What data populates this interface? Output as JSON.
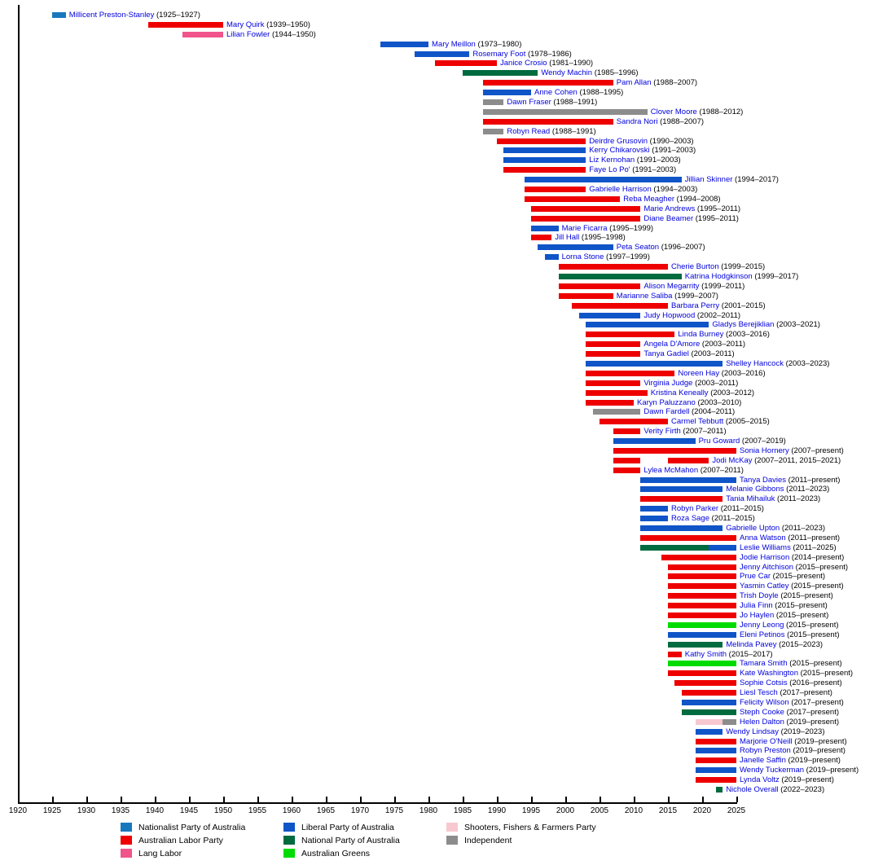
{
  "chart_data": {
    "type": "bar",
    "variant": "gantt-timeline",
    "title": "",
    "xlabel": "",
    "x_axis": {
      "min": 1920,
      "max": 2025,
      "tick_interval": 5
    },
    "present_end_year": 2025,
    "grid": false,
    "legend_position": "bottom",
    "colors": {
      "member_link": "#0202DD",
      "years_text": "#000000",
      "axis": "#000000",
      "background": "#ffffff"
    },
    "parties": {
      "nationalist": {
        "label": "Nationalist Party of Australia",
        "color": "#1878BE"
      },
      "labor": {
        "label": "Australian Labor Party",
        "color": "#EE0000"
      },
      "lang_labor": {
        "label": "Lang Labor",
        "color": "#F0548A"
      },
      "liberal": {
        "label": "Liberal Party of Australia",
        "color": "#1055C8"
      },
      "national": {
        "label": "National Party of Australia",
        "color": "#006B3F"
      },
      "greens": {
        "label": "Australian Greens",
        "color": "#00DC00"
      },
      "sff": {
        "label": "Shooters, Fishers & Farmers Party",
        "color": "#F7C8D0"
      },
      "independent": {
        "label": "Independent",
        "color": "#8C8C8C"
      }
    },
    "legend_order": [
      "nationalist",
      "labor",
      "lang_labor",
      "liberal",
      "national",
      "greens",
      "sff",
      "independent"
    ],
    "members": [
      {
        "name": "Millicent Preston-Stanley",
        "years": "(1925–1927)",
        "segments": [
          {
            "party": "nationalist",
            "start": 1925,
            "end": 1927
          }
        ]
      },
      {
        "name": "Mary Quirk",
        "years": "(1939–1950)",
        "segments": [
          {
            "party": "labor",
            "start": 1939,
            "end": 1950
          }
        ]
      },
      {
        "name": "Lilian Fowler",
        "years": "(1944–1950)",
        "segments": [
          {
            "party": "lang_labor",
            "start": 1944,
            "end": 1950
          }
        ]
      },
      {
        "name": "Mary Meillon",
        "years": "(1973–1980)",
        "segments": [
          {
            "party": "liberal",
            "start": 1973,
            "end": 1980
          }
        ]
      },
      {
        "name": "Rosemary Foot",
        "years": "(1978–1986)",
        "segments": [
          {
            "party": "liberal",
            "start": 1978,
            "end": 1986
          }
        ]
      },
      {
        "name": "Janice Crosio",
        "years": "(1981–1990)",
        "segments": [
          {
            "party": "labor",
            "start": 1981,
            "end": 1990
          }
        ]
      },
      {
        "name": "Wendy Machin",
        "years": "(1985–1996)",
        "segments": [
          {
            "party": "national",
            "start": 1985,
            "end": 1996
          }
        ]
      },
      {
        "name": "Pam Allan",
        "years": "(1988–2007)",
        "segments": [
          {
            "party": "labor",
            "start": 1988,
            "end": 2007
          }
        ]
      },
      {
        "name": "Anne Cohen",
        "years": "(1988–1995)",
        "segments": [
          {
            "party": "liberal",
            "start": 1988,
            "end": 1995
          }
        ]
      },
      {
        "name": "Dawn Fraser",
        "years": "(1988–1991)",
        "segments": [
          {
            "party": "independent",
            "start": 1988,
            "end": 1991
          }
        ]
      },
      {
        "name": "Clover Moore",
        "years": "(1988–2012)",
        "segments": [
          {
            "party": "independent",
            "start": 1988,
            "end": 2012
          }
        ]
      },
      {
        "name": "Sandra Nori",
        "years": "(1988–2007)",
        "segments": [
          {
            "party": "labor",
            "start": 1988,
            "end": 2007
          }
        ]
      },
      {
        "name": "Robyn Read",
        "years": "(1988–1991)",
        "segments": [
          {
            "party": "independent",
            "start": 1988,
            "end": 1991
          }
        ]
      },
      {
        "name": "Deirdre Grusovin",
        "years": "(1990–2003)",
        "segments": [
          {
            "party": "labor",
            "start": 1990,
            "end": 2003
          }
        ]
      },
      {
        "name": "Kerry Chikarovski",
        "years": "(1991–2003)",
        "segments": [
          {
            "party": "liberal",
            "start": 1991,
            "end": 2003
          }
        ]
      },
      {
        "name": "Liz Kernohan",
        "years": "(1991–2003)",
        "segments": [
          {
            "party": "liberal",
            "start": 1991,
            "end": 2003
          }
        ]
      },
      {
        "name": "Faye Lo Po'",
        "years": "(1991–2003)",
        "segments": [
          {
            "party": "labor",
            "start": 1991,
            "end": 2003
          }
        ]
      },
      {
        "name": "Jillian Skinner",
        "years": "(1994–2017)",
        "segments": [
          {
            "party": "liberal",
            "start": 1994,
            "end": 2017
          }
        ]
      },
      {
        "name": "Gabrielle Harrison",
        "years": "(1994–2003)",
        "segments": [
          {
            "party": "labor",
            "start": 1994,
            "end": 2003
          }
        ]
      },
      {
        "name": "Reba Meagher",
        "years": "(1994–2008)",
        "segments": [
          {
            "party": "labor",
            "start": 1994,
            "end": 2008
          }
        ]
      },
      {
        "name": "Marie Andrews",
        "years": "(1995–2011)",
        "segments": [
          {
            "party": "labor",
            "start": 1995,
            "end": 2011
          }
        ]
      },
      {
        "name": "Diane Beamer",
        "years": "(1995–2011)",
        "segments": [
          {
            "party": "labor",
            "start": 1995,
            "end": 2011
          }
        ]
      },
      {
        "name": "Marie Ficarra",
        "years": "(1995–1999)",
        "segments": [
          {
            "party": "liberal",
            "start": 1995,
            "end": 1999
          }
        ]
      },
      {
        "name": "Jill Hall",
        "years": "(1995–1998)",
        "segments": [
          {
            "party": "labor",
            "start": 1995,
            "end": 1998
          }
        ]
      },
      {
        "name": "Peta Seaton",
        "years": "(1996–2007)",
        "segments": [
          {
            "party": "liberal",
            "start": 1996,
            "end": 2007
          }
        ]
      },
      {
        "name": "Lorna Stone",
        "years": "(1997–1999)",
        "segments": [
          {
            "party": "liberal",
            "start": 1997,
            "end": 1999
          }
        ]
      },
      {
        "name": "Cherie Burton",
        "years": "(1999–2015)",
        "segments": [
          {
            "party": "labor",
            "start": 1999,
            "end": 2015
          }
        ]
      },
      {
        "name": "Katrina Hodgkinson",
        "years": "(1999–2017)",
        "segments": [
          {
            "party": "national",
            "start": 1999,
            "end": 2017
          }
        ]
      },
      {
        "name": "Alison Megarrity",
        "years": "(1999–2011)",
        "segments": [
          {
            "party": "labor",
            "start": 1999,
            "end": 2011
          }
        ]
      },
      {
        "name": "Marianne Saliba",
        "years": "(1999–2007)",
        "segments": [
          {
            "party": "labor",
            "start": 1999,
            "end": 2007
          }
        ]
      },
      {
        "name": "Barbara Perry",
        "years": "(2001–2015)",
        "segments": [
          {
            "party": "labor",
            "start": 2001,
            "end": 2015
          }
        ]
      },
      {
        "name": "Judy Hopwood",
        "years": "(2002–2011)",
        "segments": [
          {
            "party": "liberal",
            "start": 2002,
            "end": 2011
          }
        ]
      },
      {
        "name": "Gladys Berejiklian",
        "years": "(2003–2021)",
        "segments": [
          {
            "party": "liberal",
            "start": 2003,
            "end": 2021
          }
        ]
      },
      {
        "name": "Linda Burney",
        "years": "(2003–2016)",
        "segments": [
          {
            "party": "labor",
            "start": 2003,
            "end": 2016
          }
        ]
      },
      {
        "name": "Angela D'Amore",
        "years": "(2003–2011)",
        "segments": [
          {
            "party": "labor",
            "start": 2003,
            "end": 2011
          }
        ]
      },
      {
        "name": "Tanya Gadiel",
        "years": "(2003–2011)",
        "segments": [
          {
            "party": "labor",
            "start": 2003,
            "end": 2011
          }
        ]
      },
      {
        "name": "Shelley Hancock",
        "years": "(2003–2023)",
        "segments": [
          {
            "party": "liberal",
            "start": 2003,
            "end": 2023
          }
        ]
      },
      {
        "name": "Noreen Hay",
        "years": "(2003–2016)",
        "segments": [
          {
            "party": "labor",
            "start": 2003,
            "end": 2016
          }
        ]
      },
      {
        "name": "Virginia Judge",
        "years": "(2003–2011)",
        "segments": [
          {
            "party": "labor",
            "start": 2003,
            "end": 2011
          }
        ]
      },
      {
        "name": "Kristina Keneally",
        "years": "(2003–2012)",
        "segments": [
          {
            "party": "labor",
            "start": 2003,
            "end": 2012
          }
        ]
      },
      {
        "name": "Karyn Paluzzano",
        "years": "(2003–2010)",
        "segments": [
          {
            "party": "labor",
            "start": 2003,
            "end": 2010
          }
        ]
      },
      {
        "name": "Dawn Fardell",
        "years": "(2004–2011)",
        "segments": [
          {
            "party": "independent",
            "start": 2004,
            "end": 2011
          }
        ]
      },
      {
        "name": "Carmel Tebbutt",
        "years": "(2005–2015)",
        "segments": [
          {
            "party": "labor",
            "start": 2005,
            "end": 2015
          }
        ]
      },
      {
        "name": "Verity Firth",
        "years": "(2007–2011)",
        "segments": [
          {
            "party": "labor",
            "start": 2007,
            "end": 2011
          }
        ]
      },
      {
        "name": "Pru Goward",
        "years": "(2007–2019)",
        "segments": [
          {
            "party": "liberal",
            "start": 2007,
            "end": 2019
          }
        ]
      },
      {
        "name": "Sonia Hornery",
        "years": "(2007–present)",
        "segments": [
          {
            "party": "labor",
            "start": 2007,
            "end": 2025
          }
        ]
      },
      {
        "name": "Jodi McKay",
        "years": "(2007–2011, 2015–2021)",
        "segments": [
          {
            "party": "labor",
            "start": 2007,
            "end": 2011
          },
          {
            "party": "labor",
            "start": 2015,
            "end": 2021
          }
        ]
      },
      {
        "name": "Lylea McMahon",
        "years": "(2007–2011)",
        "segments": [
          {
            "party": "labor",
            "start": 2007,
            "end": 2011
          }
        ]
      },
      {
        "name": "Tanya Davies",
        "years": "(2011–present)",
        "segments": [
          {
            "party": "liberal",
            "start": 2011,
            "end": 2025
          }
        ]
      },
      {
        "name": "Melanie Gibbons",
        "years": "(2011–2023)",
        "segments": [
          {
            "party": "liberal",
            "start": 2011,
            "end": 2023
          }
        ]
      },
      {
        "name": "Tania Mihailuk",
        "years": "(2011–2023)",
        "segments": [
          {
            "party": "labor",
            "start": 2011,
            "end": 2023
          }
        ]
      },
      {
        "name": "Robyn Parker",
        "years": "(2011–2015)",
        "segments": [
          {
            "party": "liberal",
            "start": 2011,
            "end": 2015
          }
        ]
      },
      {
        "name": "Roza Sage",
        "years": "(2011–2015)",
        "segments": [
          {
            "party": "liberal",
            "start": 2011,
            "end": 2015
          }
        ]
      },
      {
        "name": "Gabrielle Upton",
        "years": "(2011–2023)",
        "segments": [
          {
            "party": "liberal",
            "start": 2011,
            "end": 2023
          }
        ]
      },
      {
        "name": "Anna Watson",
        "years": "(2011–present)",
        "segments": [
          {
            "party": "labor",
            "start": 2011,
            "end": 2025
          }
        ]
      },
      {
        "name": "Leslie Williams",
        "years": "(2011–2025)",
        "segments": [
          {
            "party": "national",
            "start": 2011,
            "end": 2021
          },
          {
            "party": "liberal",
            "start": 2021,
            "end": 2025
          }
        ]
      },
      {
        "name": "Jodie Harrison",
        "years": "(2014–present)",
        "segments": [
          {
            "party": "labor",
            "start": 2014,
            "end": 2025
          }
        ]
      },
      {
        "name": "Jenny Aitchison",
        "years": "(2015–present)",
        "segments": [
          {
            "party": "labor",
            "start": 2015,
            "end": 2025
          }
        ]
      },
      {
        "name": "Prue Car",
        "years": "(2015–present)",
        "segments": [
          {
            "party": "labor",
            "start": 2015,
            "end": 2025
          }
        ]
      },
      {
        "name": "Yasmin Catley",
        "years": "(2015–present)",
        "segments": [
          {
            "party": "labor",
            "start": 2015,
            "end": 2025
          }
        ]
      },
      {
        "name": "Trish Doyle",
        "years": "(2015–present)",
        "segments": [
          {
            "party": "labor",
            "start": 2015,
            "end": 2025
          }
        ]
      },
      {
        "name": "Julia Finn",
        "years": "(2015–present)",
        "segments": [
          {
            "party": "labor",
            "start": 2015,
            "end": 2025
          }
        ]
      },
      {
        "name": "Jo Haylen",
        "years": "(2015–present)",
        "segments": [
          {
            "party": "labor",
            "start": 2015,
            "end": 2025
          }
        ]
      },
      {
        "name": "Jenny Leong",
        "years": "(2015–present)",
        "segments": [
          {
            "party": "greens",
            "start": 2015,
            "end": 2025
          }
        ]
      },
      {
        "name": "Eleni Petinos",
        "years": "(2015–present)",
        "segments": [
          {
            "party": "liberal",
            "start": 2015,
            "end": 2025
          }
        ]
      },
      {
        "name": "Melinda Pavey",
        "years": "(2015–2023)",
        "segments": [
          {
            "party": "national",
            "start": 2015,
            "end": 2023
          }
        ]
      },
      {
        "name": "Kathy Smith",
        "years": "(2015–2017)",
        "segments": [
          {
            "party": "labor",
            "start": 2015,
            "end": 2017
          }
        ]
      },
      {
        "name": "Tamara Smith",
        "years": "(2015–present)",
        "segments": [
          {
            "party": "greens",
            "start": 2015,
            "end": 2025
          }
        ]
      },
      {
        "name": "Kate Washington",
        "years": "(2015–present)",
        "segments": [
          {
            "party": "labor",
            "start": 2015,
            "end": 2025
          }
        ]
      },
      {
        "name": "Sophie Cotsis",
        "years": "(2016–present)",
        "segments": [
          {
            "party": "labor",
            "start": 2016,
            "end": 2025
          }
        ]
      },
      {
        "name": "Liesl Tesch",
        "years": "(2017–present)",
        "segments": [
          {
            "party": "labor",
            "start": 2017,
            "end": 2025
          }
        ]
      },
      {
        "name": "Felicity Wilson",
        "years": "(2017–present)",
        "segments": [
          {
            "party": "liberal",
            "start": 2017,
            "end": 2025
          }
        ]
      },
      {
        "name": "Steph Cooke",
        "years": "(2017–present)",
        "segments": [
          {
            "party": "national",
            "start": 2017,
            "end": 2025
          }
        ]
      },
      {
        "name": "Helen Dalton",
        "years": "(2019–present)",
        "segments": [
          {
            "party": "sff",
            "start": 2019,
            "end": 2023
          },
          {
            "party": "independent",
            "start": 2023,
            "end": 2025
          }
        ]
      },
      {
        "name": "Wendy Lindsay",
        "years": "(2019–2023)",
        "segments": [
          {
            "party": "liberal",
            "start": 2019,
            "end": 2023
          }
        ]
      },
      {
        "name": "Marjorie O'Neill",
        "years": "(2019–present)",
        "segments": [
          {
            "party": "labor",
            "start": 2019,
            "end": 2025
          }
        ]
      },
      {
        "name": "Robyn Preston",
        "years": "(2019–present)",
        "segments": [
          {
            "party": "liberal",
            "start": 2019,
            "end": 2025
          }
        ]
      },
      {
        "name": "Janelle Saffin",
        "years": "(2019–present)",
        "segments": [
          {
            "party": "labor",
            "start": 2019,
            "end": 2025
          }
        ]
      },
      {
        "name": "Wendy Tuckerman",
        "years": "(2019–present)",
        "segments": [
          {
            "party": "liberal",
            "start": 2019,
            "end": 2025
          }
        ]
      },
      {
        "name": "Lynda Voltz",
        "years": "(2019–present)",
        "segments": [
          {
            "party": "labor",
            "start": 2019,
            "end": 2025
          }
        ]
      },
      {
        "name": "Nichole Overall",
        "years": "(2022–2023)",
        "segments": [
          {
            "party": "national",
            "start": 2022,
            "end": 2023
          }
        ]
      }
    ]
  }
}
